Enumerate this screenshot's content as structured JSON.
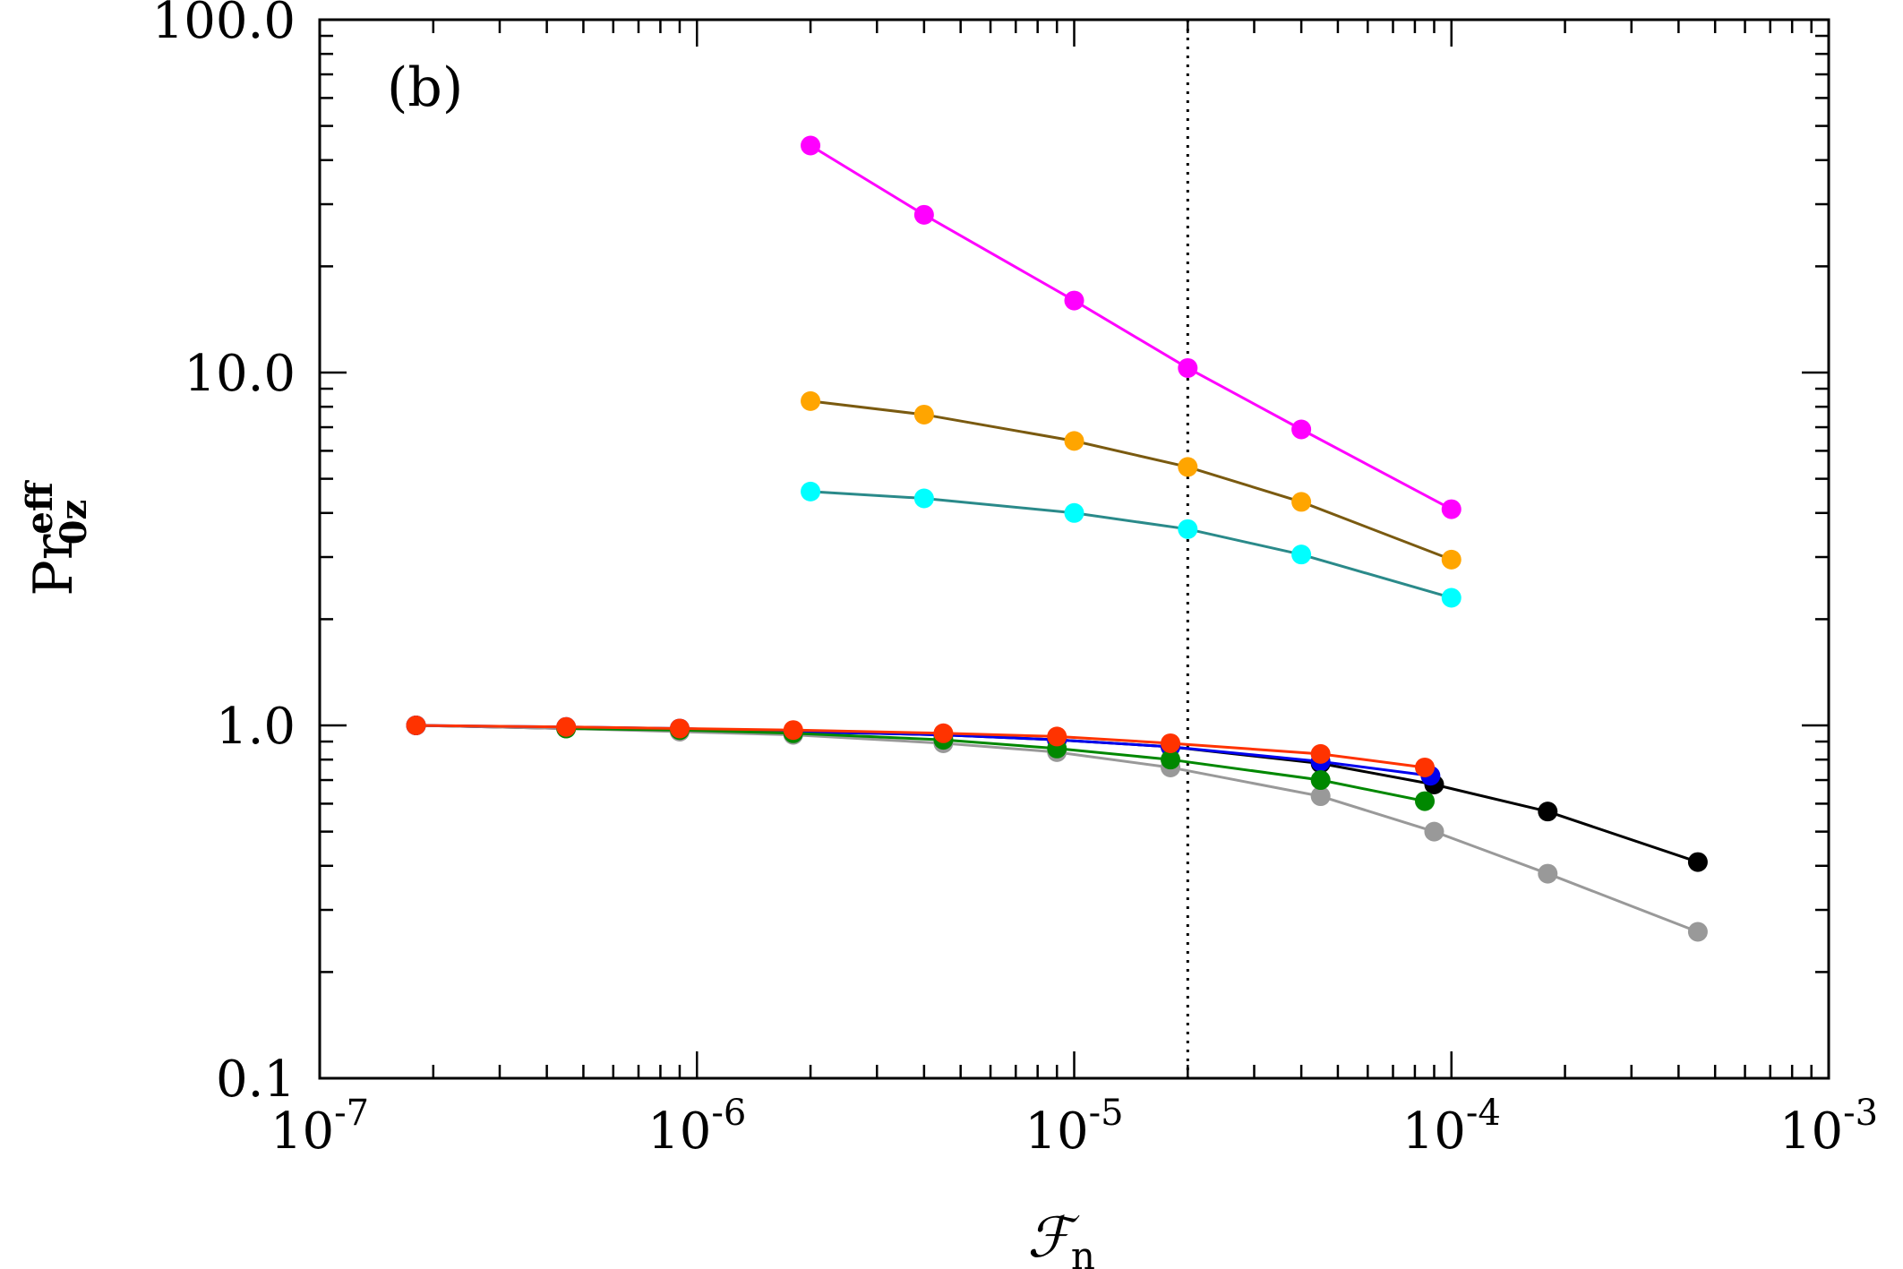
{
  "chart_data": {
    "type": "line",
    "panel_label": "(b)",
    "xlabel": {
      "main": "ℱ",
      "sub": "n"
    },
    "ylabel": {
      "main": "Pr",
      "sub": "0z",
      "sup": "eff"
    },
    "xscale": "log",
    "yscale": "log",
    "xlim": [
      1e-07,
      0.001
    ],
    "ylim": [
      0.1,
      100
    ],
    "x_ticks": [
      {
        "base": "10",
        "exp": "-7"
      },
      {
        "base": "10",
        "exp": "-6"
      },
      {
        "base": "10",
        "exp": "-5"
      },
      {
        "base": "10",
        "exp": "-4"
      },
      {
        "base": "10",
        "exp": "-3"
      }
    ],
    "y_ticks": [
      "0.1",
      "1.0",
      "10.0",
      "100.0"
    ],
    "vline_x": 2e-05,
    "series": [
      {
        "name": "magenta",
        "color": "#ff00ff",
        "line_color": "#ff00ff",
        "x": [
          2e-06,
          4e-06,
          1e-05,
          2e-05,
          4e-05,
          0.0001
        ],
        "y": [
          44,
          28,
          16,
          10.3,
          6.9,
          4.1
        ]
      },
      {
        "name": "orange",
        "color": "#ffa500",
        "line_color": "#7a5a10",
        "x": [
          2e-06,
          4e-06,
          1e-05,
          2e-05,
          4e-05,
          0.0001
        ],
        "y": [
          8.3,
          7.6,
          6.4,
          5.4,
          4.3,
          2.95
        ]
      },
      {
        "name": "cyan",
        "color": "#00ffff",
        "line_color": "#2a8a8a",
        "x": [
          2e-06,
          4e-06,
          1e-05,
          2e-05,
          4e-05,
          0.0001
        ],
        "y": [
          4.6,
          4.4,
          4.0,
          3.6,
          3.05,
          2.3
        ]
      },
      {
        "name": "black",
        "color": "#000000",
        "line_color": "#000000",
        "x": [
          1.8e-07,
          4.5e-07,
          9e-07,
          1.8e-06,
          4.5e-06,
          9e-06,
          1.8e-05,
          4.5e-05,
          9e-05,
          0.00018,
          0.00045
        ],
        "y": [
          1.0,
          0.98,
          0.97,
          0.96,
          0.94,
          0.91,
          0.87,
          0.78,
          0.68,
          0.57,
          0.41
        ]
      },
      {
        "name": "gray",
        "color": "#999999",
        "line_color": "#999999",
        "x": [
          1.8e-07,
          4.5e-07,
          9e-07,
          1.8e-06,
          4.5e-06,
          9e-06,
          1.8e-05,
          4.5e-05,
          9e-05,
          0.00018,
          0.00045
        ],
        "y": [
          1.0,
          0.98,
          0.96,
          0.94,
          0.89,
          0.84,
          0.76,
          0.63,
          0.5,
          0.38,
          0.26
        ]
      },
      {
        "name": "blue",
        "color": "#0000ee",
        "line_color": "#0000ee",
        "x": [
          1.8e-07,
          4.5e-07,
          9e-07,
          1.8e-06,
          4.5e-06,
          9e-06,
          1.8e-05,
          4.5e-05,
          8.8e-05
        ],
        "y": [
          1.0,
          0.99,
          0.98,
          0.96,
          0.94,
          0.91,
          0.87,
          0.79,
          0.72
        ]
      },
      {
        "name": "green",
        "color": "#008800",
        "line_color": "#008800",
        "x": [
          4.5e-07,
          9e-07,
          1.8e-06,
          4.5e-06,
          9e-06,
          1.8e-05,
          4.5e-05,
          8.5e-05
        ],
        "y": [
          0.98,
          0.97,
          0.95,
          0.91,
          0.86,
          0.8,
          0.7,
          0.61
        ]
      },
      {
        "name": "red",
        "color": "#ff3300",
        "line_color": "#ff3300",
        "x": [
          1.8e-07,
          4.5e-07,
          9e-07,
          1.8e-06,
          4.5e-06,
          9e-06,
          1.8e-05,
          4.5e-05,
          8.5e-05
        ],
        "y": [
          1.0,
          0.99,
          0.98,
          0.97,
          0.95,
          0.93,
          0.89,
          0.83,
          0.76
        ]
      }
    ]
  }
}
